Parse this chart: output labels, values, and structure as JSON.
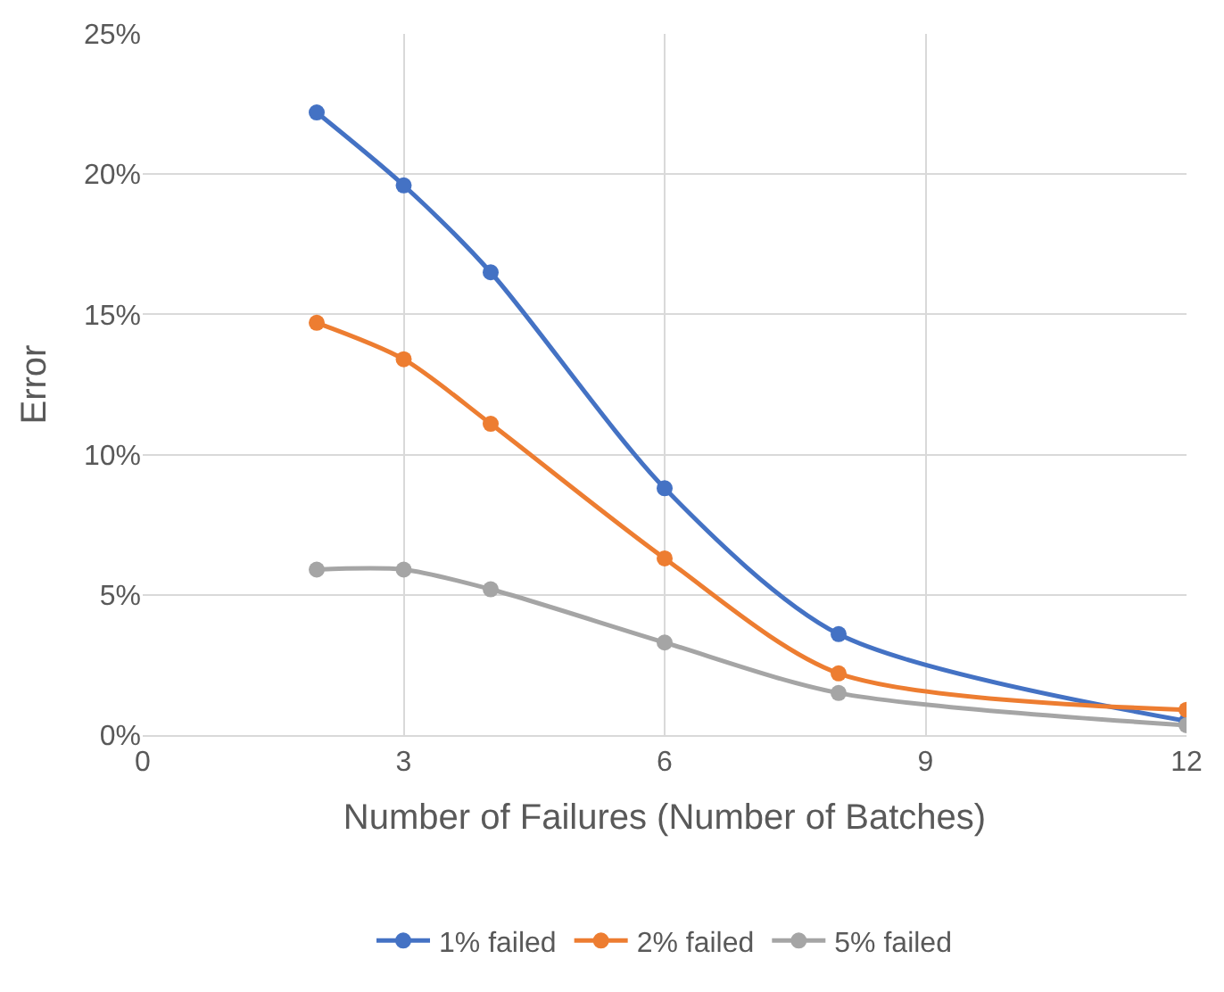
{
  "chart_data": {
    "type": "line",
    "xlabel": "Number of Failures (Number of Batches)",
    "ylabel": "Error",
    "x": [
      2,
      3,
      4,
      6,
      8,
      12
    ],
    "series": [
      {
        "name": "1% failed",
        "color": "#4472c4",
        "values": [
          22.2,
          19.6,
          16.5,
          8.8,
          3.6,
          0.5
        ]
      },
      {
        "name": "2% failed",
        "color": "#ed7d31",
        "values": [
          14.7,
          13.4,
          11.1,
          6.3,
          2.2,
          0.9
        ]
      },
      {
        "name": "5% failed",
        "color": "#a5a5a5",
        "values": [
          5.9,
          5.9,
          5.2,
          3.3,
          1.5,
          0.35
        ]
      }
    ],
    "xlim": [
      0,
      12
    ],
    "xticks": [
      0,
      3,
      6,
      9,
      12
    ],
    "ylim": [
      0,
      25
    ],
    "yticks": [
      {
        "value": 0,
        "label": "0%"
      },
      {
        "value": 5,
        "label": "5%"
      },
      {
        "value": 10,
        "label": "10%"
      },
      {
        "value": 15,
        "label": "15%"
      },
      {
        "value": 20,
        "label": "20%"
      },
      {
        "value": 25,
        "label": "25%"
      }
    ],
    "grid": true,
    "legend": "bottom",
    "marker": "circle",
    "line_style": "solid"
  }
}
